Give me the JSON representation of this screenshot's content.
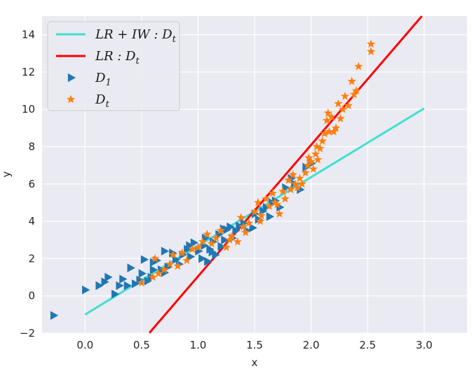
{
  "chart_data": {
    "type": "scatter",
    "title": "",
    "xlabel": "x",
    "ylabel": "y",
    "xlim": [
      -0.38,
      3.38
    ],
    "ylim": [
      -2,
      15
    ],
    "grid": true,
    "background": "#eaeaf2",
    "xticks": [
      "0.0",
      "0.5",
      "1.0",
      "1.5",
      "2.0",
      "2.5",
      "3.0"
    ],
    "yticks": [
      "−2",
      "0",
      "2",
      "4",
      "6",
      "8",
      "10",
      "12",
      "14"
    ],
    "legend": {
      "position": "top-left",
      "entries": [
        {
          "label": "LR + IW : D_t",
          "text": "LR+IW:Dt",
          "color": "#40e0d0",
          "kind": "line"
        },
        {
          "label": "LR : D_t",
          "text": "LR:Dt",
          "color": "#ff0000",
          "kind": "line"
        },
        {
          "label": "D_1",
          "text": "D1",
          "color": "#1f77b4",
          "kind": "triangle"
        },
        {
          "label": "D_t",
          "text": "Dt",
          "color": "#ff7f0e",
          "kind": "star"
        }
      ]
    },
    "lines": [
      {
        "name": "LR + IW : D_t",
        "color": "#40e0d0",
        "x": [
          0.0,
          3.0
        ],
        "y": [
          -1.0,
          10.05
        ]
      },
      {
        "name": "LR : D_t",
        "color": "#ff0000",
        "x": [
          0.57,
          2.98
        ],
        "y": [
          -1.98,
          15.0
        ]
      }
    ],
    "series": [
      {
        "name": "D_1",
        "marker": "triangle-right",
        "color": "#1f77b4",
        "points": [
          [
            -0.28,
            -1.05
          ],
          [
            0.0,
            0.32
          ],
          [
            0.12,
            0.55
          ],
          [
            0.17,
            0.75
          ],
          [
            0.2,
            1.0
          ],
          [
            0.26,
            0.1
          ],
          [
            0.3,
            0.55
          ],
          [
            0.37,
            0.55
          ],
          [
            0.4,
            1.5
          ],
          [
            0.44,
            0.65
          ],
          [
            0.48,
            0.85
          ],
          [
            0.5,
            1.2
          ],
          [
            0.52,
            1.95
          ],
          [
            0.55,
            0.8
          ],
          [
            0.58,
            1.0
          ],
          [
            0.6,
            1.4
          ],
          [
            0.63,
            1.9
          ],
          [
            0.67,
            1.4
          ],
          [
            0.7,
            1.25
          ],
          [
            0.73,
            1.55
          ],
          [
            0.77,
            2.3
          ],
          [
            0.8,
            1.95
          ],
          [
            0.83,
            1.7
          ],
          [
            0.86,
            2.2
          ],
          [
            0.9,
            2.5
          ],
          [
            0.93,
            2.1
          ],
          [
            0.96,
            2.85
          ],
          [
            1.0,
            2.4
          ],
          [
            1.03,
            2.0
          ],
          [
            1.05,
            2.7
          ],
          [
            1.08,
            1.85
          ],
          [
            1.1,
            2.5
          ],
          [
            1.13,
            2.9
          ],
          [
            1.15,
            2.2
          ],
          [
            1.18,
            3.3
          ],
          [
            1.2,
            2.65
          ],
          [
            1.23,
            3.0
          ],
          [
            1.25,
            3.55
          ],
          [
            1.28,
            3.7
          ],
          [
            1.3,
            3.1
          ],
          [
            1.33,
            3.5
          ],
          [
            1.36,
            3.75
          ],
          [
            1.4,
            3.9
          ],
          [
            1.43,
            3.5
          ],
          [
            1.48,
            3.65
          ],
          [
            1.5,
            4.4
          ],
          [
            1.53,
            4.1
          ],
          [
            1.57,
            4.55
          ],
          [
            1.6,
            4.75
          ],
          [
            1.63,
            4.25
          ],
          [
            1.68,
            5.1
          ],
          [
            1.72,
            4.75
          ],
          [
            1.77,
            5.8
          ],
          [
            1.82,
            6.3
          ],
          [
            1.9,
            5.7
          ],
          [
            1.95,
            6.9
          ],
          [
            2.0,
            7.1
          ],
          [
            0.7,
            2.4
          ],
          [
            0.92,
            2.7
          ],
          [
            1.06,
            3.1
          ],
          [
            1.22,
            3.6
          ],
          [
            1.65,
            5.0
          ],
          [
            1.85,
            6.0
          ],
          [
            0.33,
            0.9
          ],
          [
            0.6,
            1.8
          ],
          [
            1.12,
            2.35
          ]
        ]
      },
      {
        "name": "D_t",
        "marker": "star",
        "color": "#ff7f0e",
        "points": [
          [
            0.5,
            0.7
          ],
          [
            0.6,
            1.0
          ],
          [
            0.62,
            2.0
          ],
          [
            0.65,
            1.2
          ],
          [
            0.7,
            1.4
          ],
          [
            0.75,
            1.7
          ],
          [
            0.78,
            2.2
          ],
          [
            0.82,
            1.6
          ],
          [
            0.86,
            2.3
          ],
          [
            0.9,
            1.9
          ],
          [
            0.95,
            2.5
          ],
          [
            1.0,
            2.6
          ],
          [
            1.04,
            2.9
          ],
          [
            1.08,
            3.3
          ],
          [
            1.12,
            2.8
          ],
          [
            1.16,
            3.1
          ],
          [
            1.2,
            3.5
          ],
          [
            1.25,
            2.6
          ],
          [
            1.3,
            3.2
          ],
          [
            1.35,
            2.9
          ],
          [
            1.38,
            4.2
          ],
          [
            1.42,
            3.4
          ],
          [
            1.45,
            3.9
          ],
          [
            1.5,
            4.5
          ],
          [
            1.53,
            5.0
          ],
          [
            1.56,
            4.3
          ],
          [
            1.6,
            5.2
          ],
          [
            1.63,
            4.8
          ],
          [
            1.66,
            5.5
          ],
          [
            1.7,
            4.9
          ],
          [
            1.72,
            4.4
          ],
          [
            1.75,
            5.6
          ],
          [
            1.77,
            5.2
          ],
          [
            1.8,
            6.2
          ],
          [
            1.82,
            5.7
          ],
          [
            1.84,
            6.5
          ],
          [
            1.86,
            6.0
          ],
          [
            1.88,
            5.8
          ],
          [
            1.9,
            6.3
          ],
          [
            1.92,
            6.0
          ],
          [
            1.95,
            6.6
          ],
          [
            1.97,
            7.0
          ],
          [
            2.0,
            7.2
          ],
          [
            2.02,
            6.8
          ],
          [
            2.04,
            7.6
          ],
          [
            2.05,
            8.0
          ],
          [
            2.06,
            7.3
          ],
          [
            2.08,
            7.9
          ],
          [
            2.1,
            8.3
          ],
          [
            2.12,
            8.7
          ],
          [
            2.14,
            9.4
          ],
          [
            2.16,
            8.8
          ],
          [
            2.18,
            9.6
          ],
          [
            2.2,
            8.8
          ],
          [
            2.22,
            9.0
          ],
          [
            2.24,
            10.3
          ],
          [
            2.26,
            9.5
          ],
          [
            2.28,
            10.0
          ],
          [
            2.3,
            10.7
          ],
          [
            2.33,
            10.2
          ],
          [
            2.36,
            11.5
          ],
          [
            2.38,
            10.8
          ],
          [
            2.4,
            11.0
          ],
          [
            2.42,
            12.3
          ],
          [
            2.53,
            13.5
          ],
          [
            2.53,
            13.1
          ],
          [
            1.4,
            3.7
          ],
          [
            1.55,
            4.0
          ],
          [
            1.68,
            5.0
          ],
          [
            1.98,
            7.4
          ],
          [
            2.15,
            9.8
          ],
          [
            1.28,
            3.0
          ]
        ]
      }
    ]
  }
}
